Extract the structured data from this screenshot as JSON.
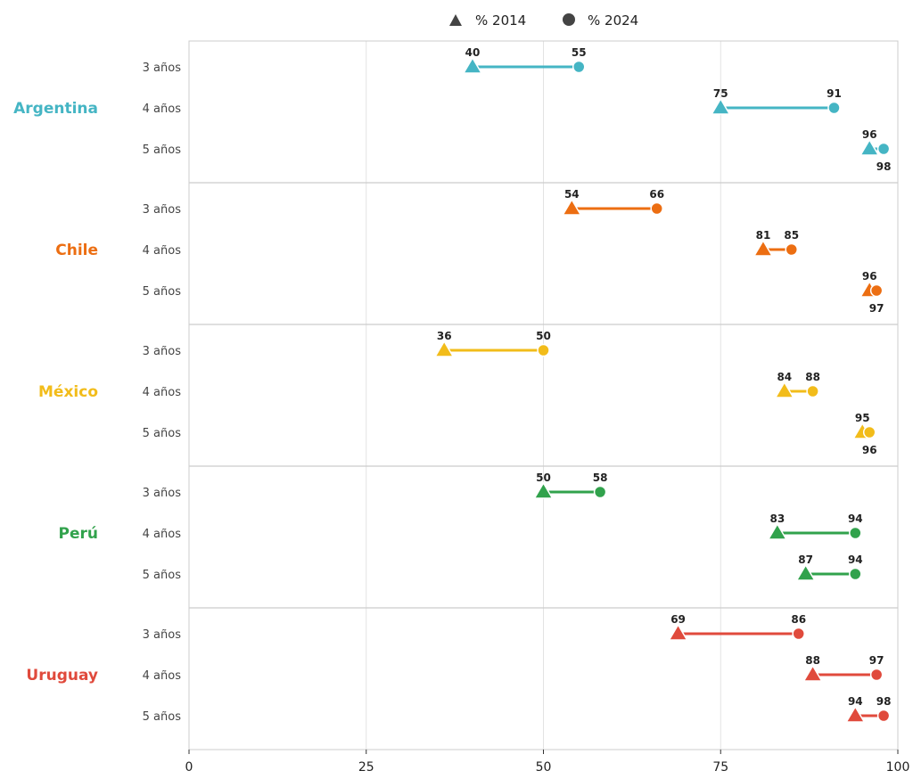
{
  "chart_data": {
    "type": "dumbbell",
    "legend": [
      {
        "marker": "triangle",
        "label": "% 2014"
      },
      {
        "marker": "circle",
        "label": "% 2024"
      }
    ],
    "legend_position": "top-center",
    "xlim": [
      0,
      100
    ],
    "xticks": [
      "0",
      "25",
      "50",
      "75",
      "100"
    ],
    "grid": "vertical",
    "groups": [
      {
        "country": "Argentina",
        "color": "#45b5c4",
        "rows": [
          {
            "age": "3 años",
            "v2014": 40,
            "v2024": 55
          },
          {
            "age": "4 años",
            "v2014": 75,
            "v2024": 91
          },
          {
            "age": "5 años",
            "v2014": 96,
            "v2024": 98
          }
        ]
      },
      {
        "country": "Chile",
        "color": "#ec6e12",
        "rows": [
          {
            "age": "3 años",
            "v2014": 54,
            "v2024": 66
          },
          {
            "age": "4 años",
            "v2014": 81,
            "v2024": 85
          },
          {
            "age": "5 años",
            "v2014": 96,
            "v2024": 97
          }
        ]
      },
      {
        "country": "México",
        "color": "#f2bc1a",
        "rows": [
          {
            "age": "3 años",
            "v2014": 36,
            "v2024": 50
          },
          {
            "age": "4 años",
            "v2014": 84,
            "v2024": 88
          },
          {
            "age": "5 años",
            "v2014": 95,
            "v2024": 96
          }
        ]
      },
      {
        "country": "Perú",
        "color": "#31a24c",
        "rows": [
          {
            "age": "3 años",
            "v2014": 50,
            "v2024": 58
          },
          {
            "age": "4 años",
            "v2014": 83,
            "v2024": 94
          },
          {
            "age": "5 años",
            "v2014": 87,
            "v2024": 94
          }
        ]
      },
      {
        "country": "Uruguay",
        "color": "#e04a3c",
        "rows": [
          {
            "age": "3 años",
            "v2014": 69,
            "v2024": 86
          },
          {
            "age": "4 años",
            "v2014": 88,
            "v2024": 97
          },
          {
            "age": "5 años",
            "v2014": 94,
            "v2024": 98
          }
        ]
      }
    ]
  }
}
